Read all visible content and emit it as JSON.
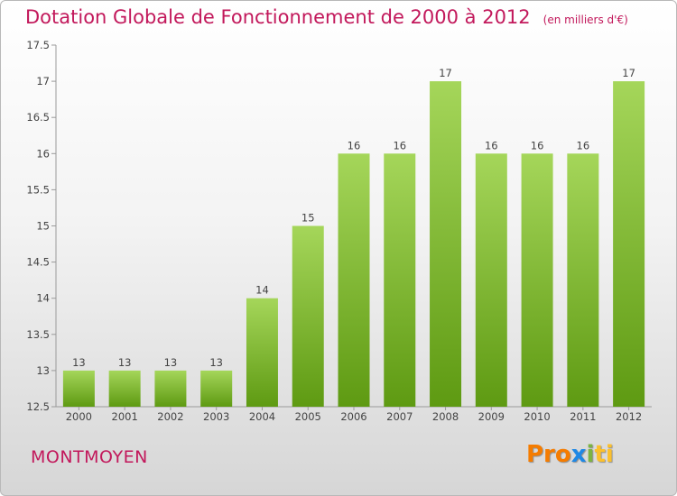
{
  "header": {
    "title": "Dotation Globale de Fonctionnement de 2000 à 2012",
    "unit": "(en milliers d'€)"
  },
  "footer": {
    "city": "MONTMOYEN",
    "logo": [
      "Pro",
      "x",
      "i",
      "ti"
    ]
  },
  "colors": {
    "title": "#c2185b",
    "bar_top": "#a5d65a",
    "bar_bottom": "#5e9a12"
  },
  "chart_data": {
    "type": "bar",
    "title": "Dotation Globale de Fonctionnement de 2000 à 2012",
    "subtitle": "(en milliers d'€)",
    "categories": [
      "2000",
      "2001",
      "2002",
      "2003",
      "2004",
      "2005",
      "2006",
      "2007",
      "2008",
      "2009",
      "2010",
      "2011",
      "2012"
    ],
    "values": [
      13,
      13,
      13,
      13,
      14,
      15,
      16,
      16,
      17,
      16,
      16,
      16,
      17
    ],
    "ylim": [
      12.5,
      17.5
    ],
    "yticks": [
      12.5,
      13,
      13.5,
      14,
      14.5,
      15,
      15.5,
      16,
      16.5,
      17,
      17.5
    ],
    "xlabel": "",
    "ylabel": "",
    "grid": false,
    "legend": "none"
  }
}
